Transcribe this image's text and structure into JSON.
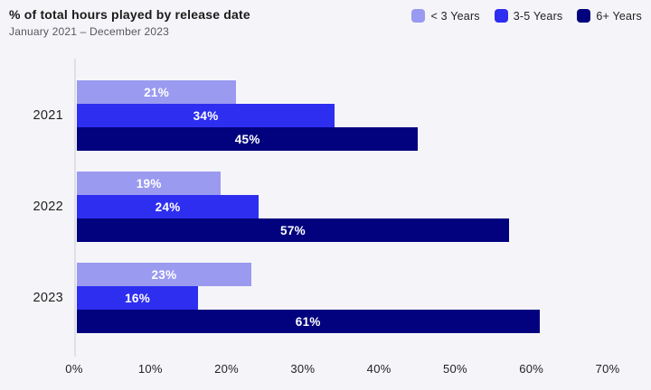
{
  "header": {
    "title": "% of total hours played by release date",
    "subtitle": "January 2021 – December 2023"
  },
  "colors": {
    "background": "#f5f5f9",
    "axis_line": "#dfdfe6",
    "title_text": "#1a1a1a",
    "subtitle_text": "#56565e",
    "tick_text": "#222222",
    "value_label_text": "#ffffff"
  },
  "chart_data": {
    "type": "bar",
    "orientation": "horizontal",
    "title": "% of total hours played by release date",
    "subtitle": "January 2021 – December 2023",
    "categories": [
      "2021",
      "2022",
      "2023"
    ],
    "series": [
      {
        "name": "< 3 Years",
        "color": "#9a9af0",
        "values": [
          21,
          19,
          23
        ]
      },
      {
        "name": "3-5 Years",
        "color": "#2e2ef0",
        "values": [
          34,
          24,
          16
        ]
      },
      {
        "name": "6+ Years",
        "color": "#02027e",
        "values": [
          45,
          57,
          61
        ]
      }
    ],
    "value_suffix": "%",
    "xlim": [
      0,
      70
    ],
    "x_ticks": [
      "0%",
      "10%",
      "20%",
      "30%",
      "40%",
      "50%",
      "60%",
      "70%"
    ],
    "grid": false,
    "legend_position": "top-right",
    "value_labels": "inside-center"
  }
}
